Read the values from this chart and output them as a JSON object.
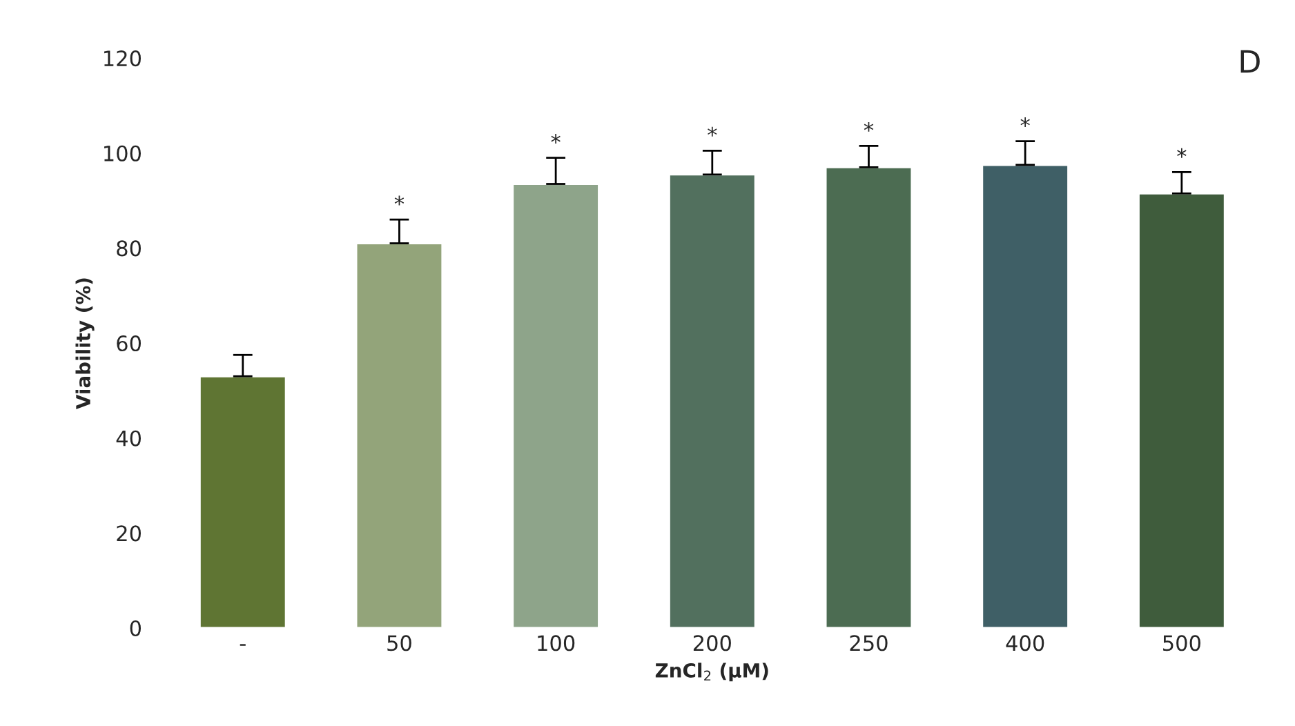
{
  "chart_data": {
    "type": "bar",
    "xlabel": "ZnCl$_{2}$ (µM)",
    "ylabel": "Viability (%)",
    "categories": [
      "-",
      "50",
      "100",
      "200",
      "250",
      "400",
      "500"
    ],
    "values": [
      53,
      81,
      93.5,
      95.5,
      97,
      97.5,
      91.5
    ],
    "errors": [
      [
        53,
        57.5
      ],
      [
        81,
        86
      ],
      [
        93.5,
        99
      ],
      [
        95.5,
        100.5
      ],
      [
        97,
        101.5
      ],
      [
        97.5,
        102.5
      ],
      [
        91.5,
        96
      ]
    ],
    "colors": [
      "#5f7533",
      "#93a47a",
      "#8ea48a",
      "#52705e",
      "#4c6c52",
      "#3f5f66",
      "#3f5c3c"
    ],
    "ylim": [
      0,
      120
    ],
    "yticks": [
      0,
      20,
      40,
      60,
      80,
      100,
      120
    ],
    "grid": false,
    "annotations": [
      "D",
      {
        "text": "*",
        "x": "50",
        "y": 86
      },
      {
        "text": "*",
        "x": "100",
        "y": 99
      },
      {
        "text": "*",
        "x": "200",
        "y": 100.5
      },
      {
        "text": "*",
        "x": "250",
        "y": 101.5
      },
      {
        "text": "*",
        "x": "400",
        "y": 102.5
      },
      {
        "text": "*",
        "x": "500",
        "y": 96
      }
    ]
  }
}
